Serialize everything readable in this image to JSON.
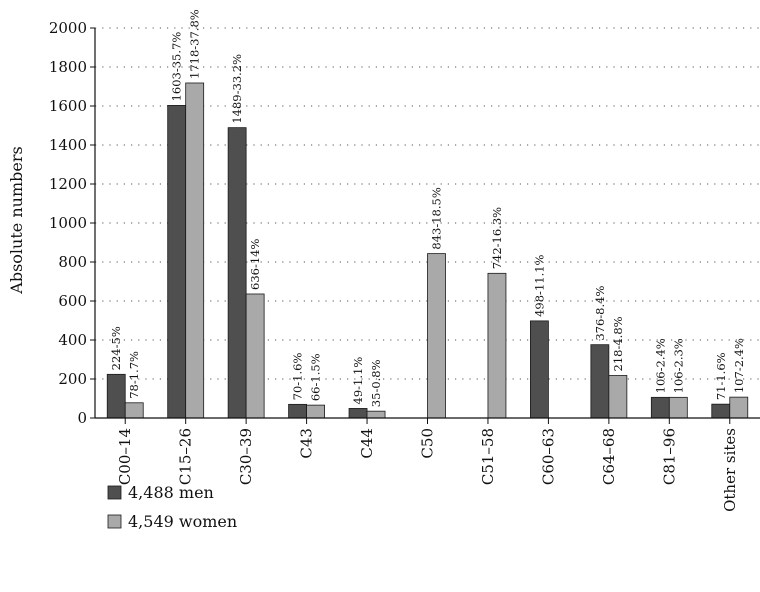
{
  "chart_data": {
    "type": "bar",
    "categories": [
      "C00–14",
      "C15–26",
      "C30–39",
      "C43",
      "C44",
      "C50",
      "C51–58",
      "C60–63",
      "C64–68",
      "C81–96",
      "Other sites"
    ],
    "series": [
      {
        "name": "4,488 men",
        "color": "#4f4f4f",
        "values": [
          224,
          1603,
          1489,
          70,
          49,
          null,
          null,
          498,
          376,
          106,
          71
        ],
        "labels": [
          "224-5%",
          "1603-35.7%",
          "1489-33.2%",
          "70-1.6%",
          "49-1.1%",
          "",
          "",
          "498-11.1%",
          "376-8.4%",
          "106-2.4%",
          "71-1.6%"
        ]
      },
      {
        "name": "4,549 women",
        "color": "#a9a9a9",
        "values": [
          78,
          1718,
          636,
          66,
          35,
          843,
          742,
          null,
          218,
          106,
          107
        ],
        "labels": [
          "78-1.7%",
          "1718-37.8%",
          "636-14%",
          "66-1.5%",
          "35-0.8%",
          "843-18.5%",
          "742-16.3%",
          "",
          "218-4.8%",
          "106-2.3%",
          "107-2.4%"
        ]
      }
    ],
    "ylabel": "Absolute numbers",
    "xlabel": "",
    "ylim": [
      0,
      2000
    ],
    "yticks": [
      0,
      200,
      400,
      600,
      800,
      1000,
      1200,
      1400,
      1600,
      1800,
      2000
    ],
    "grid": "horizontal-dotted",
    "legend_position": "bottom-left"
  }
}
